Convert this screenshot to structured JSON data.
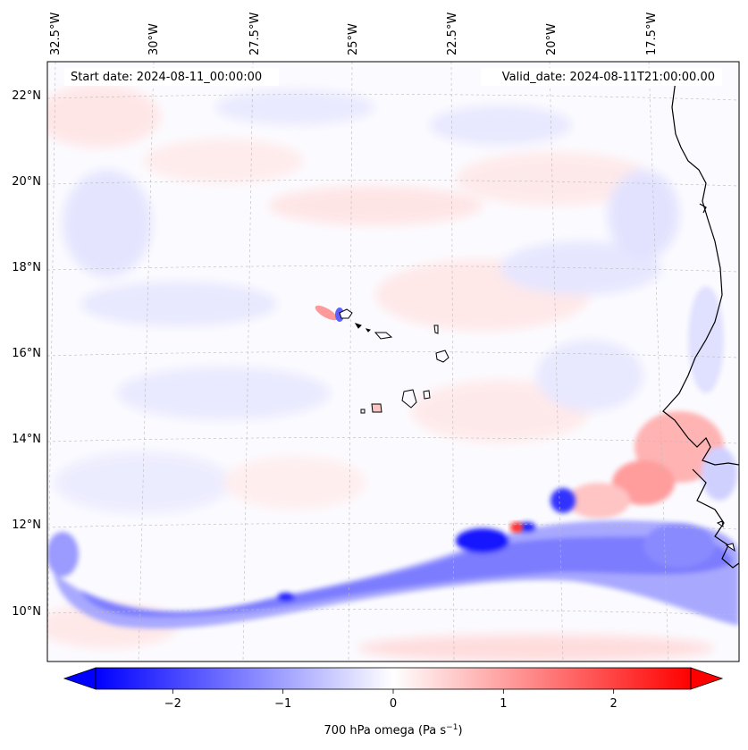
{
  "map": {
    "start_date_text": "Start date: 2024-08-11_00:00:00",
    "valid_date_text": "Valid_date: 2024-08-11T21:00:00.00",
    "longitude_labels": [
      "32.5°W",
      "30°W",
      "27.5°W",
      "25°W",
      "22.5°W",
      "20°W",
      "17.5°W"
    ],
    "latitude_labels": [
      "22°N",
      "20°N",
      "18°N",
      "16°N",
      "14°N",
      "12°N",
      "10°N"
    ],
    "features": [
      "Cape Verde islands",
      "West African coastline"
    ]
  },
  "colorbar": {
    "ticks": [
      "−2",
      "−1",
      "0",
      "1",
      "2"
    ],
    "tick_values": [
      -2,
      -1,
      0,
      1,
      2
    ],
    "range": [
      -2.7,
      2.7
    ],
    "label": "700 hPa omega (Pa s",
    "label_exponent": "−1",
    "label_close": ")",
    "colors": {
      "min": "#0000ff",
      "mid": "#ffffff",
      "max": "#ff0000"
    }
  }
}
